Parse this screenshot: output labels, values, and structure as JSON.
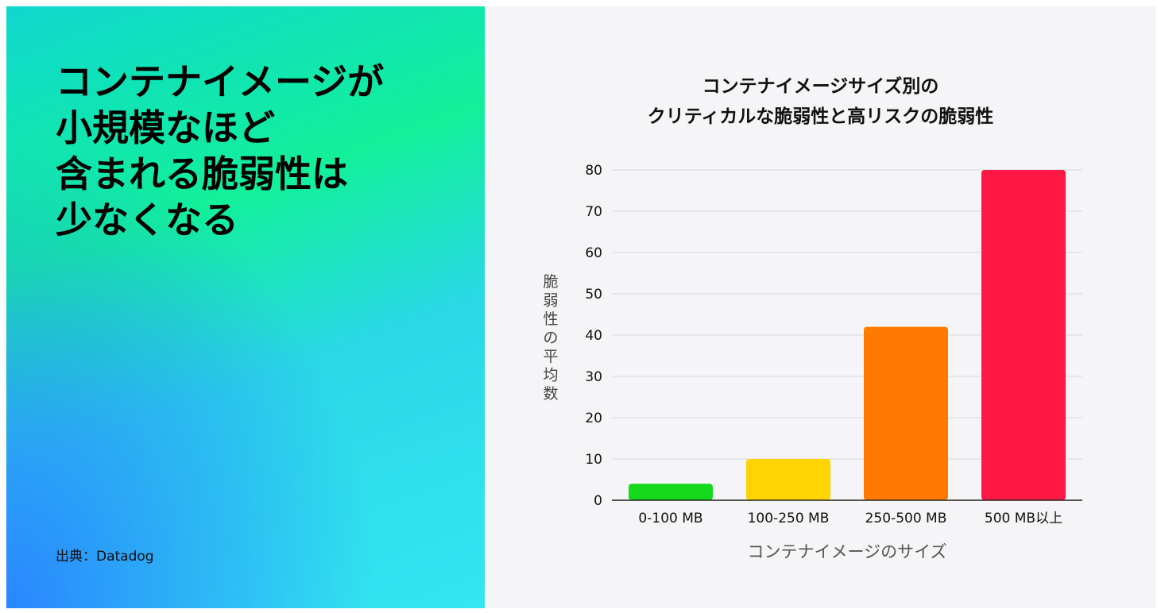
{
  "headline": {
    "lines": [
      "コンテナイメージが",
      "小規模なほど",
      "含まれる脆弱性は",
      "少なくなる"
    ]
  },
  "source": "出典：Datadog",
  "chart_data": {
    "type": "bar",
    "title_lines": [
      "コンテナイメージサイズ別の",
      "クリティカルな脆弱性と高リスクの脆弱性"
    ],
    "categories": [
      "0-100 MB",
      "100-250 MB",
      "250-500 MB",
      "500 MB以上"
    ],
    "values": [
      4,
      10,
      42,
      80
    ],
    "colors": [
      "#14d91c",
      "#ffd400",
      "#ff7a00",
      "#ff1745"
    ],
    "xlabel": "コンテナイメージのサイズ",
    "ylabel": "脆弱性の平均数",
    "ylim": [
      0,
      80
    ],
    "yticks": [
      0,
      10,
      20,
      30,
      40,
      50,
      60,
      70,
      80
    ],
    "grid": true
  }
}
